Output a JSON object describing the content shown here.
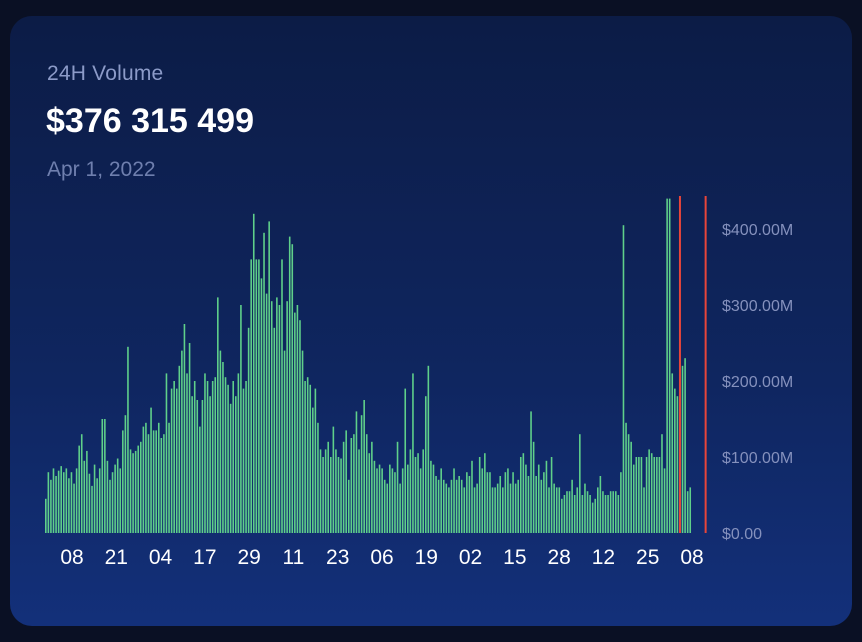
{
  "header": {
    "label": "24H Volume",
    "value": "$376 315 499",
    "date": "Apr 1, 2022"
  },
  "colors": {
    "bar": "#5fd08a",
    "marker": "#e8453a",
    "ytick": "#8591bd",
    "xtick": "#ffffff"
  },
  "chart_data": {
    "type": "bar",
    "title": "",
    "xlabel": "",
    "ylabel": "",
    "ylim": [
      0,
      400000000
    ],
    "y_tick_labels": [
      "$0.00",
      "$100.00M",
      "$200.00M",
      "$300.00M",
      "$400.00M"
    ],
    "x_tick_labels": [
      "08",
      "21",
      "04",
      "17",
      "29",
      "11",
      "23",
      "06",
      "19",
      "02",
      "15",
      "28",
      "12",
      "25",
      "08"
    ],
    "series": [
      {
        "values": [
          45000000,
          80000000,
          70000000,
          85000000,
          75000000,
          82000000,
          88000000,
          80000000,
          85000000,
          72000000,
          80000000,
          65000000,
          85000000,
          115000000,
          130000000,
          95000000,
          108000000,
          78000000,
          62000000,
          90000000,
          72000000,
          85000000,
          150000000,
          150000000,
          95000000,
          70000000,
          80000000,
          90000000,
          98000000,
          85000000,
          135000000,
          155000000,
          245000000,
          110000000,
          105000000,
          108000000,
          115000000,
          120000000,
          140000000,
          145000000,
          130000000,
          165000000,
          135000000,
          135000000,
          145000000,
          125000000,
          130000000,
          210000000,
          145000000,
          190000000,
          200000000,
          190000000,
          220000000,
          240000000,
          275000000,
          210000000,
          250000000,
          180000000,
          200000000,
          175000000,
          140000000,
          175000000,
          210000000,
          200000000,
          180000000,
          200000000,
          205000000,
          310000000,
          240000000,
          225000000,
          205000000,
          195000000,
          170000000,
          200000000,
          180000000,
          210000000,
          300000000,
          190000000,
          200000000,
          270000000,
          360000000,
          420000000,
          360000000,
          360000000,
          335000000,
          395000000,
          315000000,
          410000000,
          305000000,
          270000000,
          310000000,
          300000000,
          360000000,
          240000000,
          305000000,
          390000000,
          380000000,
          290000000,
          300000000,
          280000000,
          240000000,
          200000000,
          205000000,
          195000000,
          165000000,
          190000000,
          145000000,
          110000000,
          100000000,
          110000000,
          120000000,
          100000000,
          140000000,
          110000000,
          100000000,
          98000000,
          120000000,
          135000000,
          70000000,
          125000000,
          130000000,
          160000000,
          110000000,
          155000000,
          175000000,
          130000000,
          105000000,
          120000000,
          95000000,
          85000000,
          90000000,
          85000000,
          70000000,
          65000000,
          90000000,
          85000000,
          80000000,
          120000000,
          65000000,
          85000000,
          190000000,
          90000000,
          110000000,
          210000000,
          100000000,
          105000000,
          85000000,
          110000000,
          180000000,
          220000000,
          95000000,
          90000000,
          75000000,
          70000000,
          85000000,
          70000000,
          65000000,
          60000000,
          70000000,
          85000000,
          70000000,
          75000000,
          70000000,
          60000000,
          80000000,
          75000000,
          95000000,
          60000000,
          65000000,
          100000000,
          85000000,
          105000000,
          80000000,
          80000000,
          60000000,
          60000000,
          65000000,
          75000000,
          60000000,
          80000000,
          85000000,
          65000000,
          80000000,
          65000000,
          70000000,
          100000000,
          105000000,
          90000000,
          75000000,
          160000000,
          120000000,
          75000000,
          90000000,
          70000000,
          80000000,
          95000000,
          60000000,
          100000000,
          65000000,
          60000000,
          60000000,
          45000000,
          50000000,
          55000000,
          55000000,
          70000000,
          50000000,
          60000000,
          130000000,
          50000000,
          65000000,
          55000000,
          50000000,
          40000000,
          45000000,
          60000000,
          75000000,
          55000000,
          50000000,
          50000000,
          55000000,
          55000000,
          55000000,
          50000000,
          80000000,
          405000000,
          145000000,
          130000000,
          120000000,
          90000000,
          100000000,
          100000000,
          100000000,
          60000000,
          100000000,
          110000000,
          105000000,
          100000000,
          100000000,
          100000000,
          130000000,
          85000000,
          440000000,
          440000000,
          210000000,
          190000000,
          180000000,
          230000000,
          220000000,
          230000000,
          55000000,
          60000000
        ]
      }
    ],
    "markers": [
      {
        "type": "vertical-line",
        "index": 247
      },
      {
        "type": "vertical-line",
        "index": 257
      }
    ]
  }
}
